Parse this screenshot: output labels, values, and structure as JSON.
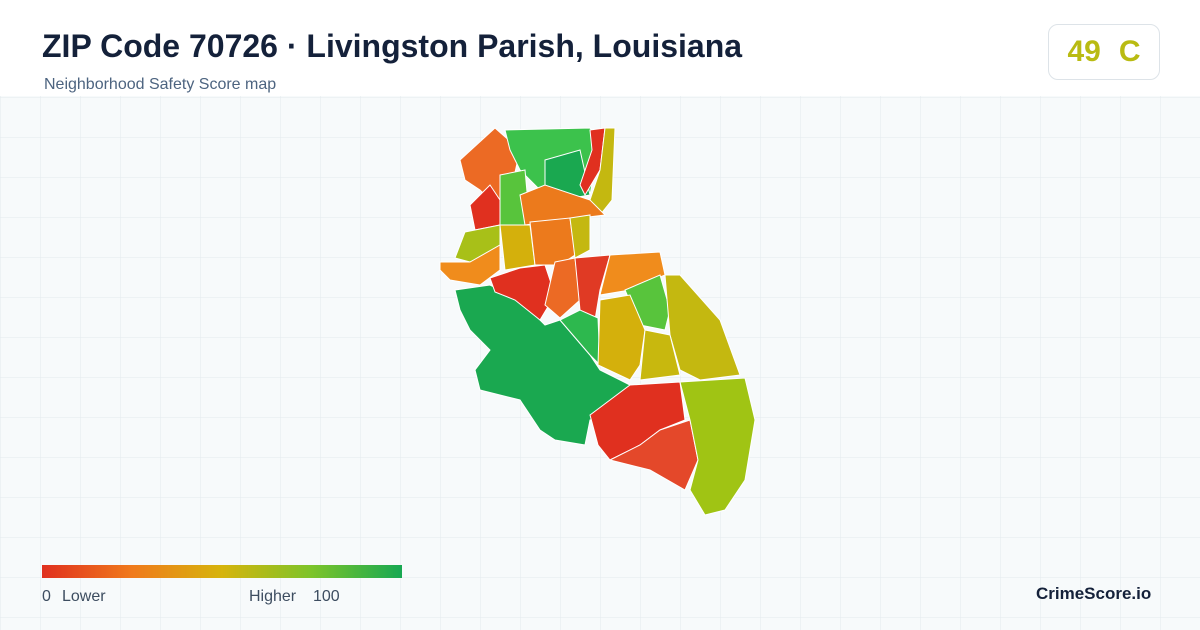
{
  "header": {
    "title": "ZIP Code 70726 · Livingston Parish, Louisiana",
    "subtitle": "Neighborhood Safety Score map"
  },
  "score": {
    "value": 49,
    "grade": "C"
  },
  "legend": {
    "min": 0,
    "min_label": "Lower",
    "max_label": "Higher",
    "max": 100
  },
  "brand": "CrimeScore.io"
}
